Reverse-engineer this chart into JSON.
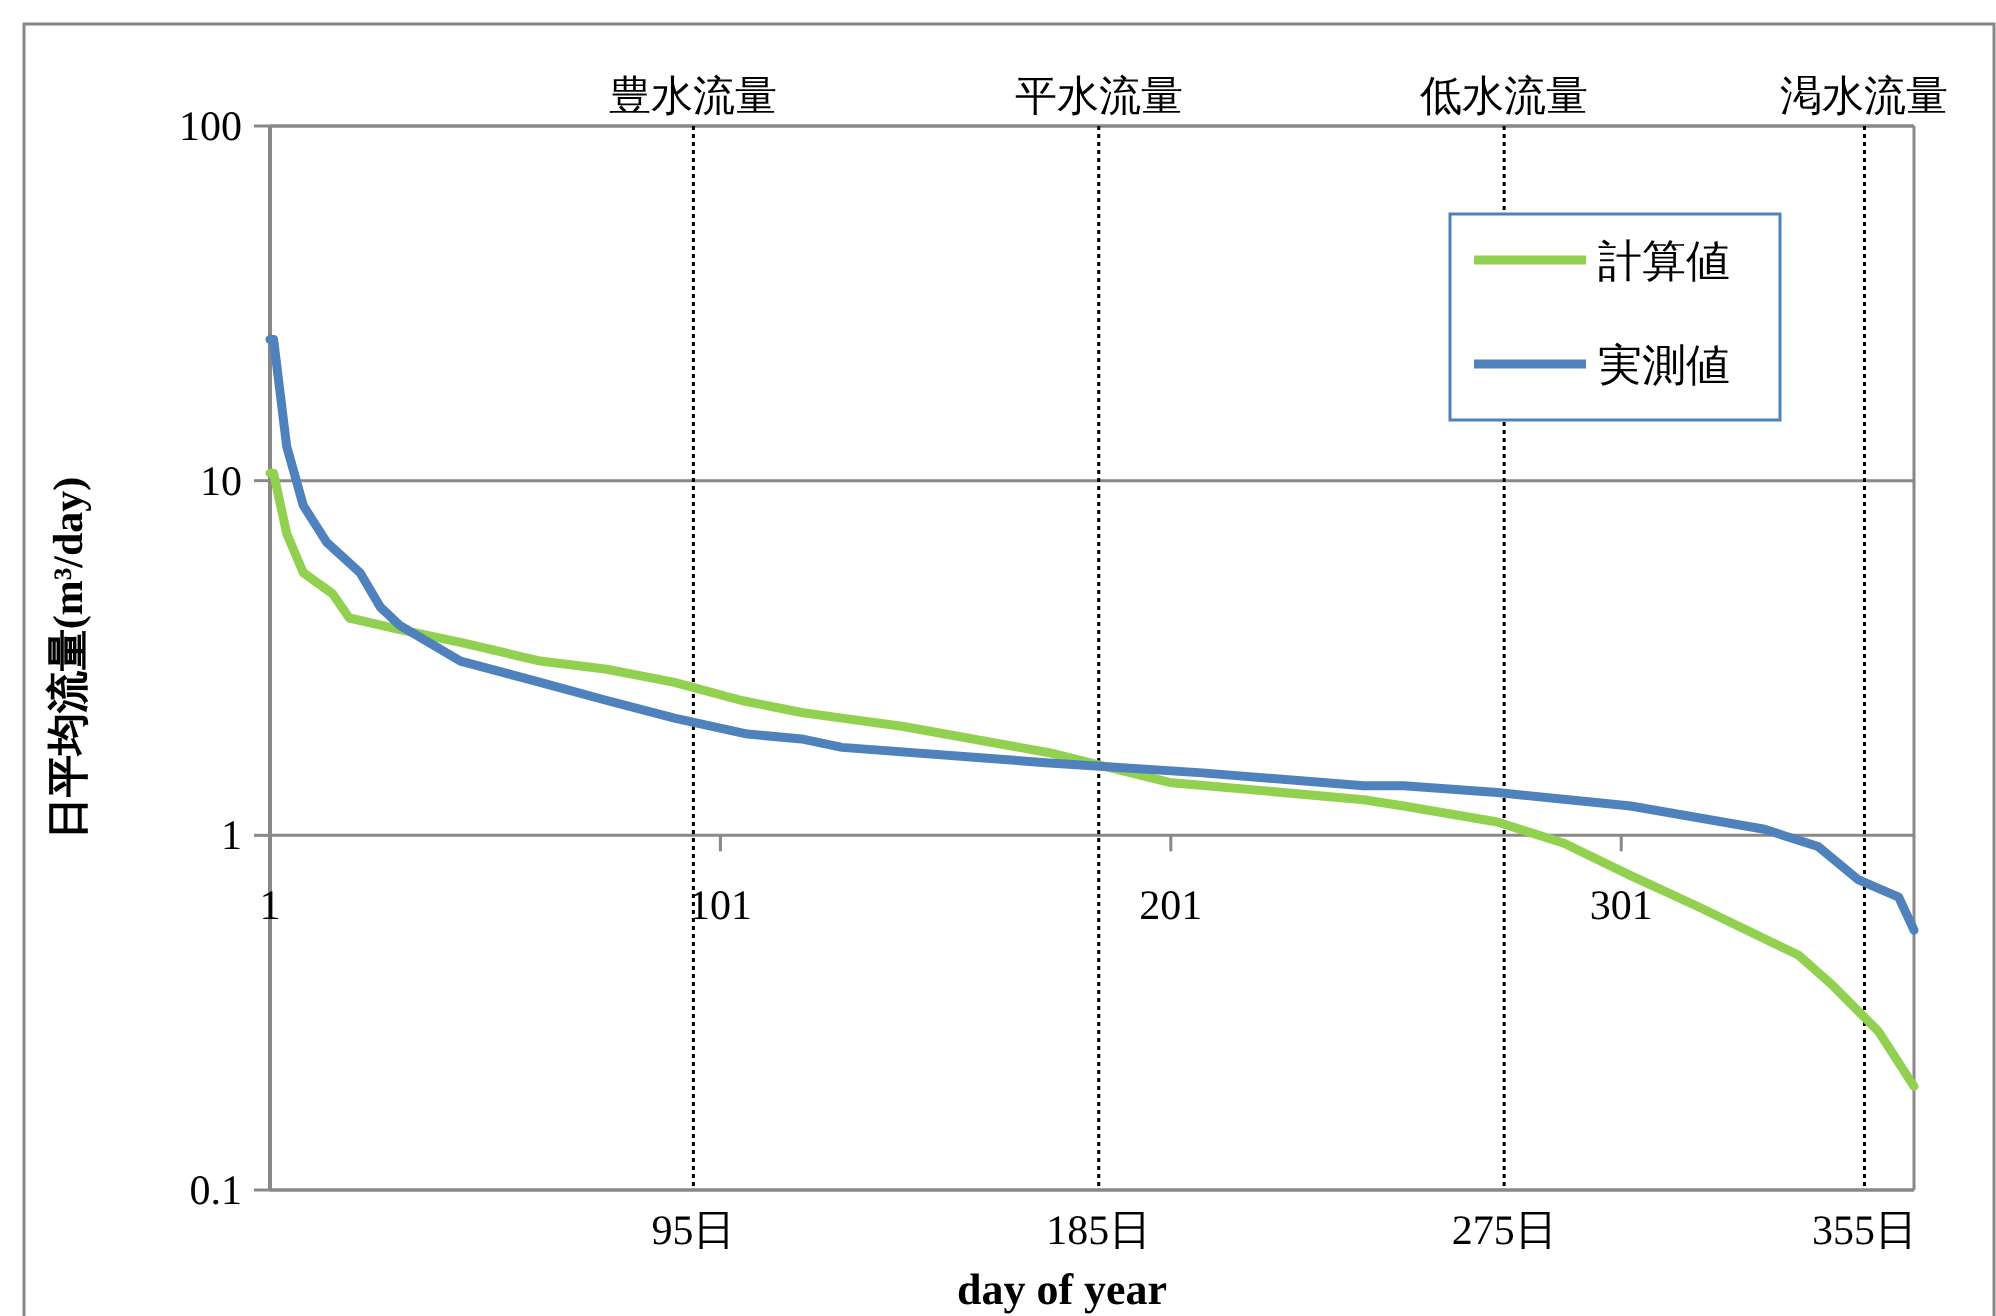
{
  "chart_data": {
    "type": "line",
    "xlabel": "day of year",
    "ylabel": "日平均流量(m³/day)",
    "log": "y",
    "grid": "y",
    "legend": "top right",
    "marker": "none",
    "line_style": "solid",
    "xlim": [
      1,
      366
    ],
    "xticks": [
      1,
      101,
      201,
      301
    ],
    "ylim": [
      0.1,
      100
    ],
    "yticks": [
      0.1,
      1,
      10,
      100
    ],
    "series": [
      {
        "name": "計算値",
        "color": "#92d050",
        "x": [
          1,
          1.8,
          4.7,
          8.4,
          14.9,
          18.6,
          29.9,
          43.3,
          61,
          75.8,
          90.8,
          105.7,
          119,
          128,
          141.3,
          174,
          200.7,
          243.8,
          252.7,
          273.5,
          288.3,
          303.1,
          318,
          340.3,
          347.7,
          358.1,
          366
        ],
        "values": [
          10.5,
          10.5,
          7.1,
          5.5,
          4.8,
          4.1,
          3.8,
          3.5,
          3.1,
          2.94,
          2.7,
          2.4,
          2.22,
          2.14,
          2.03,
          1.71,
          1.41,
          1.26,
          1.21,
          1.09,
          0.95,
          0.77,
          0.63,
          0.46,
          0.38,
          0.28,
          0.196
        ]
      },
      {
        "name": "実測値",
        "color": "#4f81bd",
        "x": [
          1,
          1.8,
          4.7,
          8.4,
          13.6,
          21,
          25.5,
          29.9,
          43.3,
          61,
          75.8,
          90.8,
          107,
          119,
          128,
          174,
          208,
          243.8,
          252.7,
          273.5,
          303.1,
          332.8,
          344.7,
          353.6,
          362.6,
          366
        ],
        "values": [
          25,
          25,
          12.5,
          8.5,
          6.7,
          5.5,
          4.4,
          3.9,
          3.1,
          2.7,
          2.4,
          2.14,
          1.93,
          1.87,
          1.77,
          1.6,
          1.5,
          1.38,
          1.38,
          1.32,
          1.21,
          1.04,
          0.93,
          0.75,
          0.67,
          0.54
        ]
      }
    ],
    "ref_lines": [
      {
        "axis": "x",
        "value": 95,
        "label": "豊水流量",
        "line_style": "dotted"
      },
      {
        "axis": "x",
        "value": 185,
        "label": "平水流量",
        "line_style": "dotted"
      },
      {
        "axis": "x",
        "value": 275,
        "label": "低水流量",
        "line_style": "dotted"
      },
      {
        "axis": "x",
        "value": 355,
        "label": "渇水流量",
        "line_style": "dotted"
      }
    ],
    "annotations": [
      {
        "text": "95日",
        "x": 95,
        "y": 0.1
      },
      {
        "text": "185日",
        "x": 185,
        "y": 0.1
      },
      {
        "text": "275日",
        "x": 275,
        "y": 0.1
      },
      {
        "text": "355日",
        "x": 355,
        "y": 0.1
      }
    ]
  }
}
